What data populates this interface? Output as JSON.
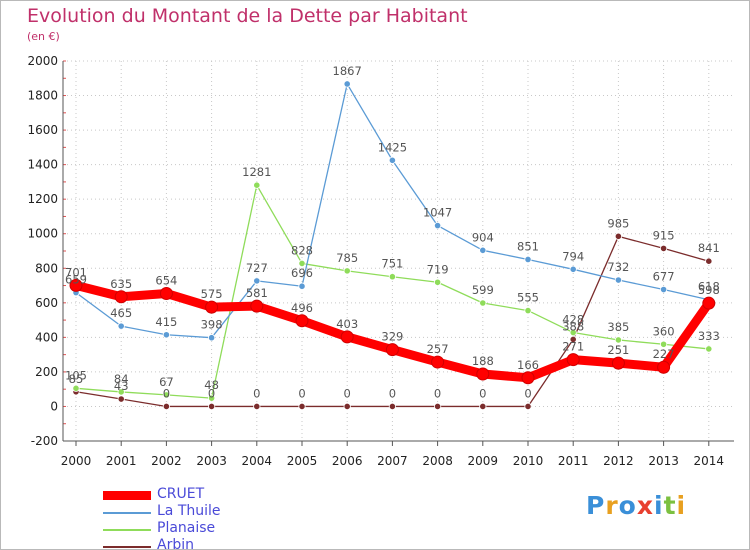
{
  "chart": {
    "title": "Evolution du Montant de la Dette par Habitant",
    "unit": "(en €)"
  },
  "chart_data": {
    "type": "line",
    "title": "Evolution du Montant de la Dette par Habitant",
    "subtitle": "(en €)",
    "xlabel": "",
    "ylabel": "",
    "x": [
      2000,
      2001,
      2002,
      2003,
      2004,
      2005,
      2006,
      2007,
      2008,
      2009,
      2010,
      2011,
      2012,
      2013,
      2014
    ],
    "ylim": [
      -200,
      2000
    ],
    "yticks": [
      -200,
      0,
      200,
      400,
      600,
      800,
      1000,
      1200,
      1400,
      1600,
      1800,
      2000
    ],
    "grid": true,
    "legend_position": "bottom-left",
    "series": [
      {
        "name": "CRUET",
        "color": "#ff0000",
        "values": [
          701,
          635,
          654,
          575,
          581,
          496,
          403,
          329,
          257,
          188,
          166,
          271,
          251,
          227,
          598
        ]
      },
      {
        "name": "La Thuile",
        "color": "#5b9bd5",
        "values": [
          659,
          465,
          415,
          398,
          727,
          696,
          1867,
          1425,
          1047,
          904,
          851,
          794,
          732,
          677,
          618
        ]
      },
      {
        "name": "Planaise",
        "color": "#8fdc5a",
        "values": [
          105,
          84,
          67,
          48,
          1281,
          828,
          785,
          751,
          719,
          599,
          555,
          428,
          385,
          360,
          333
        ]
      },
      {
        "name": "Arbin",
        "color": "#7b2c2c",
        "values": [
          85,
          43,
          0,
          0,
          0,
          0,
          0,
          0,
          0,
          0,
          0,
          388,
          985,
          915,
          841
        ]
      }
    ]
  },
  "logo": {
    "letters": [
      {
        "ch": "P",
        "color": "#3a8fd8"
      },
      {
        "ch": "r",
        "color": "#e8a020"
      },
      {
        "ch": "o",
        "color": "#3a8fd8"
      },
      {
        "ch": "x",
        "color": "#e84030"
      },
      {
        "ch": "i",
        "color": "#3a8fd8"
      },
      {
        "ch": "t",
        "color": "#7cc040"
      },
      {
        "ch": "i",
        "color": "#e8a020"
      }
    ]
  }
}
